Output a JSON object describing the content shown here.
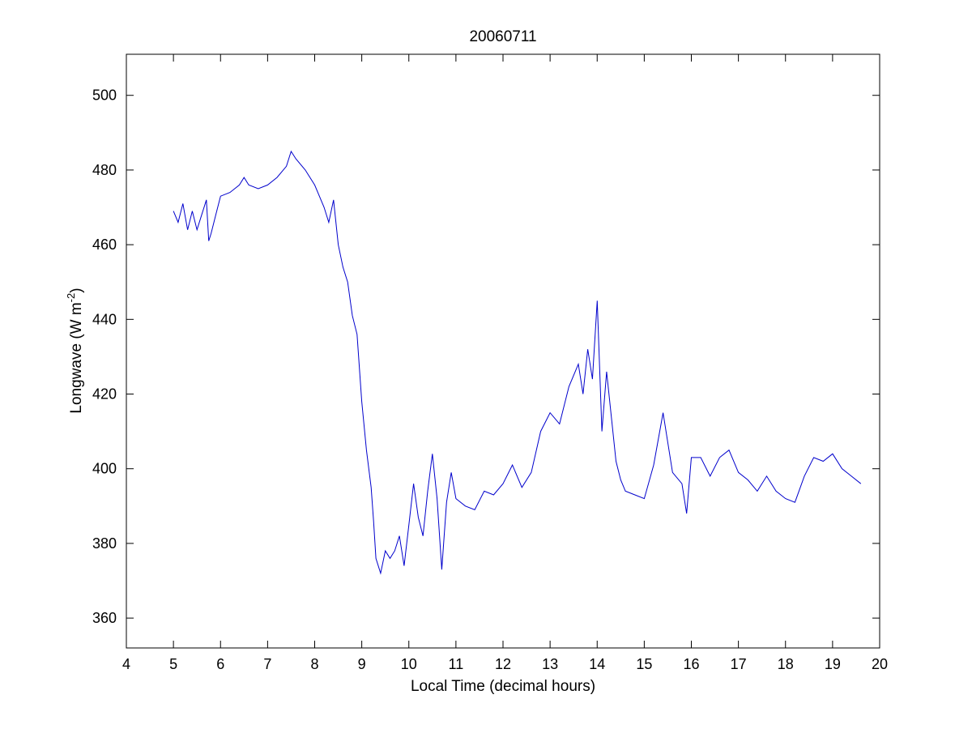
{
  "chart_data": {
    "type": "line",
    "title": "20060711",
    "xlabel": "Local Time (decimal hours)",
    "ylabel": "Longwave (W m-2)",
    "ylabel_parts": {
      "main": "Longwave (W m",
      "superscript": "-2",
      "close": ")"
    },
    "xlim": [
      4,
      20
    ],
    "ylim": [
      352,
      511
    ],
    "xticks": [
      4,
      5,
      6,
      7,
      8,
      9,
      10,
      11,
      12,
      13,
      14,
      15,
      16,
      17,
      18,
      19,
      20
    ],
    "yticks": [
      360,
      380,
      400,
      420,
      440,
      460,
      480,
      500
    ],
    "grid": false,
    "line_color": "#0000cc",
    "series": [
      {
        "x": [
          5.0,
          5.1,
          5.2,
          5.3,
          5.4,
          5.5,
          5.6,
          5.7,
          5.75,
          5.8,
          5.9,
          6.0,
          6.2,
          6.4,
          6.5,
          6.6,
          6.8,
          7.0,
          7.2,
          7.4,
          7.5,
          7.6,
          7.8,
          8.0,
          8.1,
          8.2,
          8.3,
          8.4,
          8.5,
          8.6,
          8.7,
          8.8,
          8.9,
          9.0,
          9.1,
          9.2,
          9.25,
          9.3,
          9.4,
          9.5,
          9.6,
          9.7,
          9.8,
          9.9,
          10.0,
          10.1,
          10.2,
          10.3,
          10.4,
          10.5,
          10.6,
          10.7,
          10.8,
          10.9,
          11.0,
          11.2,
          11.4,
          11.6,
          11.8,
          12.0,
          12.2,
          12.4,
          12.6,
          12.8,
          13.0,
          13.2,
          13.4,
          13.6,
          13.7,
          13.8,
          13.9,
          14.0,
          14.1,
          14.2,
          14.3,
          14.4,
          14.5,
          14.6,
          14.8,
          15.0,
          15.2,
          15.4,
          15.6,
          15.8,
          15.9,
          16.0,
          16.2,
          16.4,
          16.6,
          16.8,
          17.0,
          17.2,
          17.4,
          17.6,
          17.8,
          18.0,
          18.2,
          18.4,
          18.6,
          18.8,
          19.0,
          19.2,
          19.4,
          19.6
        ],
        "values": [
          469,
          466,
          471,
          464,
          469,
          464,
          468,
          472,
          461,
          463,
          468,
          473,
          474,
          476,
          478,
          476,
          475,
          476,
          478,
          481,
          485,
          483,
          480,
          476,
          473,
          470,
          466,
          472,
          460,
          454,
          450,
          441,
          436,
          418,
          405,
          395,
          386,
          376,
          372,
          378,
          376,
          378,
          382,
          374,
          385,
          396,
          387,
          382,
          394,
          404,
          392,
          373,
          391,
          399,
          392,
          390,
          389,
          394,
          393,
          396,
          401,
          395,
          399,
          410,
          415,
          412,
          422,
          428,
          420,
          432,
          424,
          445,
          410,
          426,
          414,
          402,
          397,
          394,
          393,
          392,
          401,
          415,
          399,
          396,
          388,
          403,
          403,
          398,
          403,
          405,
          399,
          397,
          394,
          398,
          394,
          392,
          391,
          398,
          403,
          402,
          404,
          400,
          398,
          396
        ]
      }
    ]
  }
}
